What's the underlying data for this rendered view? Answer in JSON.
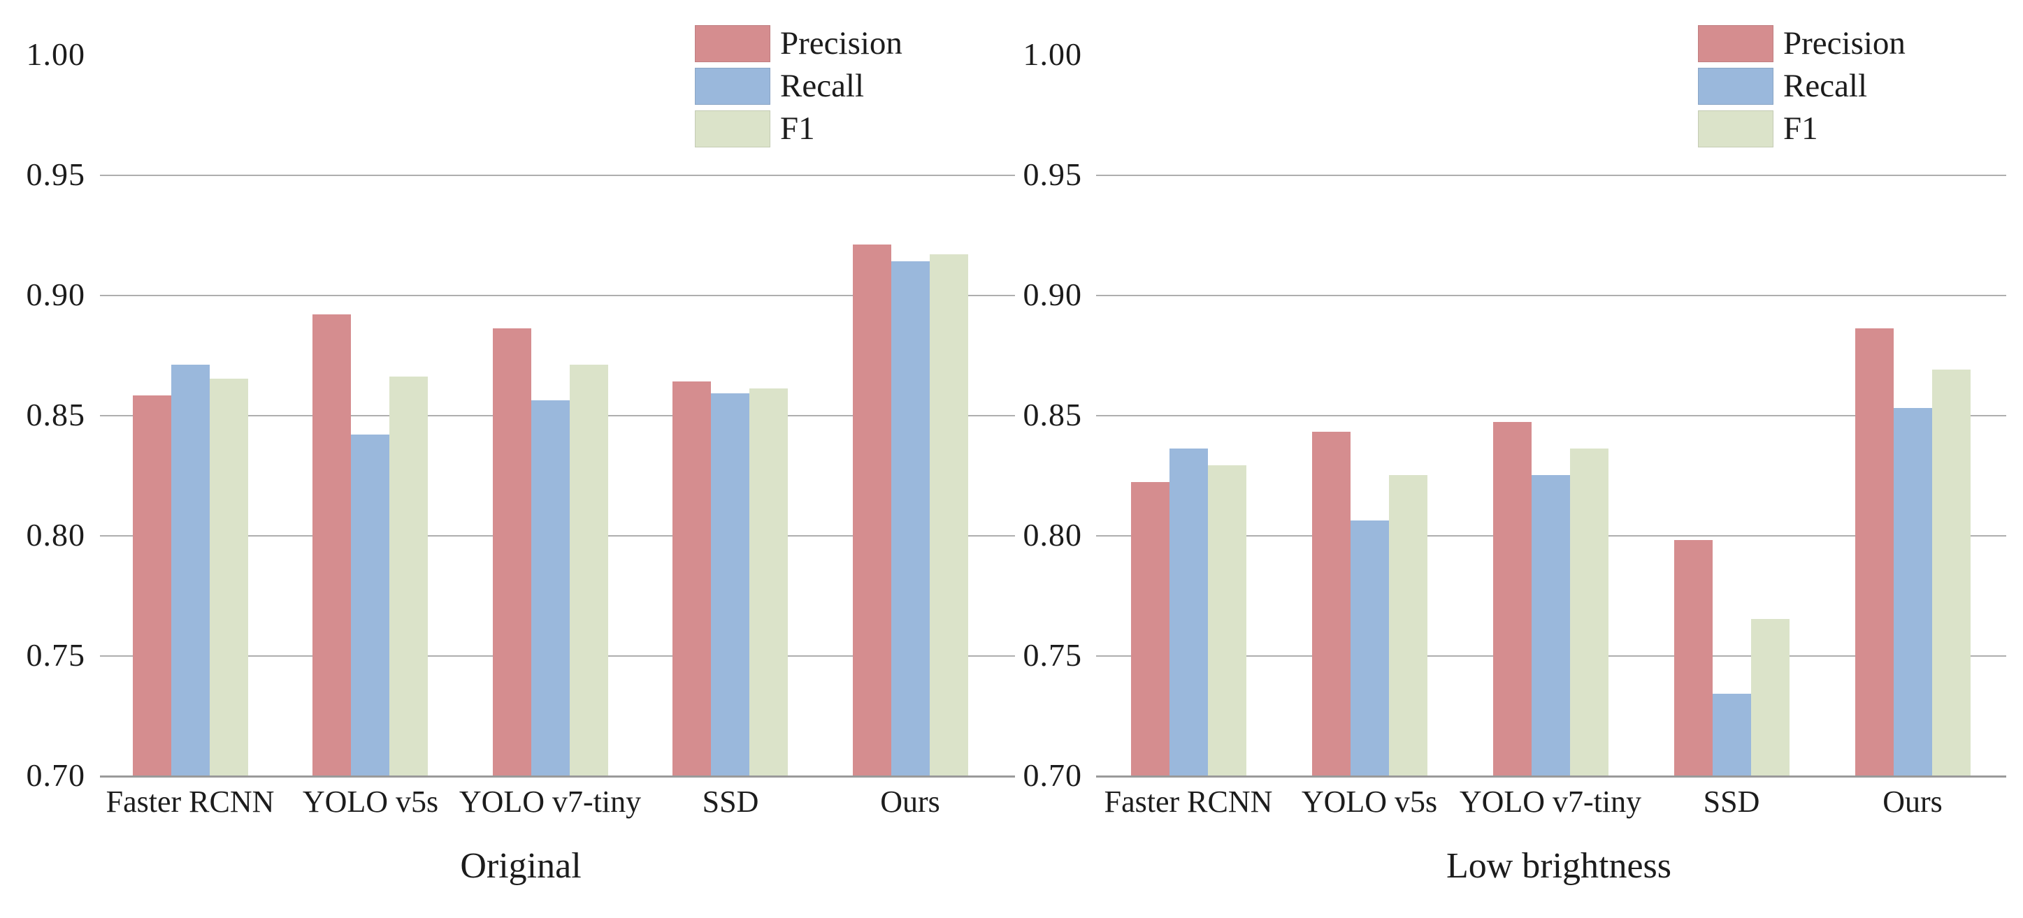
{
  "figure": {
    "background": "#ffffff",
    "gridline_color": "#aeaeae",
    "axis_line_color": "#9a9a9a",
    "text_color": "#1c1c1c",
    "series_colors": {
      "precision": "#d58d8f",
      "recall": "#9ab8dc",
      "f1": "#dbe3c9"
    }
  },
  "legend": {
    "items": [
      {
        "label": "Precision",
        "color": "#d58d8f"
      },
      {
        "label": "Recall",
        "color": "#9ab8dc"
      },
      {
        "label": "F1",
        "color": "#dbe3c9"
      }
    ]
  },
  "chart_data": [
    {
      "type": "bar",
      "title": "Original",
      "categories": [
        "Faster RCNN",
        "YOLO v5s",
        "YOLO v7-tiny",
        "SSD",
        "Ours"
      ],
      "series": [
        {
          "name": "Precision",
          "values": [
            0.858,
            0.892,
            0.886,
            0.864,
            0.921
          ]
        },
        {
          "name": "Recall",
          "values": [
            0.871,
            0.842,
            0.856,
            0.859,
            0.914
          ]
        },
        {
          "name": "F1",
          "values": [
            0.865,
            0.866,
            0.871,
            0.861,
            0.917
          ]
        }
      ],
      "ylim": [
        0.7,
        1.0
      ],
      "yticks": [
        0.7,
        0.75,
        0.8,
        0.85,
        0.9,
        0.95,
        1.0
      ],
      "ytick_labels": [
        "0.70",
        "0.75",
        "0.80",
        "0.85",
        "0.90",
        "0.95",
        "1.00"
      ],
      "grid": "horizontal",
      "legend_position": "top-right-inside"
    },
    {
      "type": "bar",
      "title": "Low brightness",
      "categories": [
        "Faster RCNN",
        "YOLO v5s",
        "YOLO v7-tiny",
        "SSD",
        "Ours"
      ],
      "series": [
        {
          "name": "Precision",
          "values": [
            0.822,
            0.843,
            0.847,
            0.798,
            0.886
          ]
        },
        {
          "name": "Recall",
          "values": [
            0.836,
            0.806,
            0.825,
            0.734,
            0.853
          ]
        },
        {
          "name": "F1",
          "values": [
            0.829,
            0.825,
            0.836,
            0.765,
            0.869
          ]
        }
      ],
      "ylim": [
        0.7,
        1.0
      ],
      "yticks": [
        0.7,
        0.75,
        0.8,
        0.85,
        0.9,
        0.95,
        1.0
      ],
      "ytick_labels": [
        "0.70",
        "0.75",
        "0.80",
        "0.85",
        "0.90",
        "0.95",
        "1.00"
      ],
      "grid": "horizontal",
      "legend_position": "top-right-inside"
    }
  ]
}
